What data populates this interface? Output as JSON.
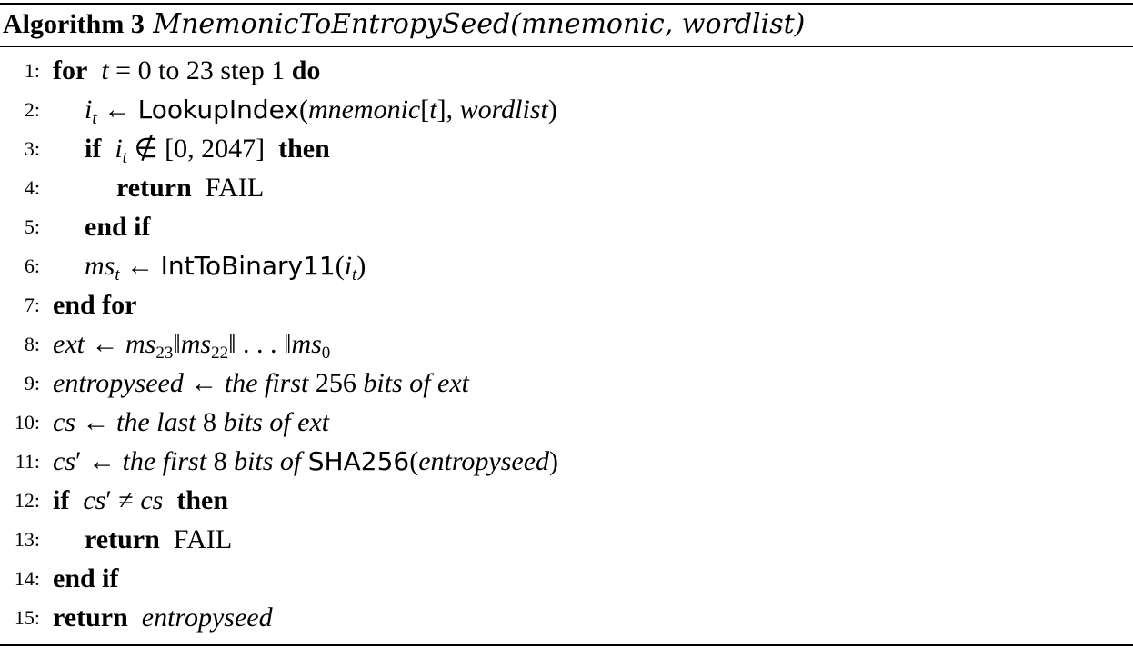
{
  "algorithm": {
    "label": "Algorithm 3",
    "name": "MnemonicToEntropySeed",
    "args": "(mnemonic, wordlist)"
  },
  "lines": [
    {
      "num": "1:",
      "text": "for  t = 0 to 23 step 1 do"
    },
    {
      "num": "2:",
      "text": "i_t ← LookupIndex(mnemonic[t], wordlist)"
    },
    {
      "num": "3:",
      "text": "if  i_t ∉ [0, 2047]  then"
    },
    {
      "num": "4:",
      "text": "return  FAIL"
    },
    {
      "num": "5:",
      "text": "end if"
    },
    {
      "num": "6:",
      "text": "ms_t ← IntToBinary11(i_t)"
    },
    {
      "num": "7:",
      "text": "end for"
    },
    {
      "num": "8:",
      "text": "ext ← ms_23‖ms_22‖ . . . ‖ms_0"
    },
    {
      "num": "9:",
      "text": "entropyseed ← the first 256 bits of ext"
    },
    {
      "num": "10:",
      "text": "cs ← the last 8 bits of ext"
    },
    {
      "num": "11:",
      "text": "cs′ ← the first 8 bits of SHA256(entropyseed)"
    },
    {
      "num": "12:",
      "text": "if  cs′ ≠ cs  then"
    },
    {
      "num": "13:",
      "text": "return  FAIL"
    },
    {
      "num": "14:",
      "text": "end if"
    },
    {
      "num": "15:",
      "text": "return  entropyseed"
    }
  ]
}
